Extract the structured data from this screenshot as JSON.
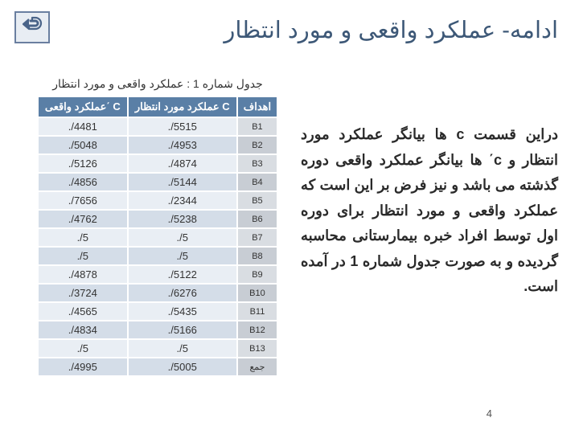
{
  "title": "ادامه- عملکرد واقعی و مورد انتظار",
  "back_icon_color": "#4a6489",
  "paragraph": "دراین قسمت c ها بیانگر عملکرد مورد انتظار و c΄ ها بیانگر عملکرد واقعی دوره گذشته می باشد و نیز فرض بر این است که عملکرد واقعی و مورد انتظار برای دوره اول توسط افراد خبره بیمارستانی محاسبه گردیده و به صورت جدول شماره 1 در آمده است.",
  "table": {
    "caption": "جدول شماره 1 : عملکرد واقعی و مورد انتظار",
    "headers": {
      "actual": "عملکرد واقعی΄ C",
      "expected": "عملکرد مورد انتظار C",
      "goals": "اهداف"
    },
    "rows": [
      {
        "actual": "./4481",
        "expected": "./5515",
        "goal": "B1"
      },
      {
        "actual": "./5048",
        "expected": "./4953",
        "goal": "B2"
      },
      {
        "actual": "./5126",
        "expected": "./4874",
        "goal": "B3"
      },
      {
        "actual": "./4856",
        "expected": "./5144",
        "goal": "B4"
      },
      {
        "actual": "./7656",
        "expected": "./2344",
        "goal": "B5"
      },
      {
        "actual": "./4762",
        "expected": "./5238",
        "goal": "B6"
      },
      {
        "actual": "./5",
        "expected": "./5",
        "goal": "B7"
      },
      {
        "actual": "./5",
        "expected": "./5",
        "goal": "B8"
      },
      {
        "actual": "./4878",
        "expected": "./5122",
        "goal": "B9"
      },
      {
        "actual": "./3724",
        "expected": "./6276",
        "goal": "B10"
      },
      {
        "actual": "./4565",
        "expected": "./5435",
        "goal": "B11"
      },
      {
        "actual": "./4834",
        "expected": "./5166",
        "goal": "B12"
      },
      {
        "actual": "./5",
        "expected": "./5",
        "goal": "B13"
      },
      {
        "actual": "./4995",
        "expected": "./5005",
        "goal": "جمع"
      }
    ]
  },
  "page_number": "4"
}
